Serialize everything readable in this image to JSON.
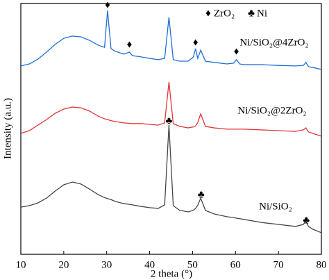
{
  "chart_data": {
    "type": "line",
    "xlabel": "2 theta (°)",
    "ylabel": "Intensity (a.u.)",
    "x": [
      10,
      12,
      14,
      16,
      18,
      20,
      22,
      24,
      26,
      28,
      29.5,
      30.2,
      31,
      32,
      34,
      35.3,
      36,
      38,
      40,
      42,
      43.5,
      44.5,
      45.5,
      47,
      49,
      50.2,
      50.7,
      51.2,
      51.9,
      53,
      55,
      58,
      59.6,
      60.2,
      61,
      62,
      66,
      70,
      74,
      75.8,
      76.4,
      77,
      78,
      80
    ],
    "series": [
      {
        "name": "Ni/SiO₂@4ZrO₂",
        "color": "#1f6fd6",
        "values": [
          75.1,
          75.9,
          77.8,
          80.6,
          83.7,
          86.1,
          87.0,
          86.7,
          85.3,
          83.4,
          82.5,
          97.2,
          82.0,
          80.9,
          79.8,
          80.6,
          79.2,
          78.7,
          78.1,
          77.6,
          78.1,
          94.5,
          77.6,
          77.0,
          77.0,
          78.7,
          82.0,
          78.1,
          81.4,
          77.0,
          76.5,
          75.9,
          76.2,
          77.6,
          75.9,
          75.6,
          75.6,
          75.3,
          75.1,
          75.3,
          76.5,
          74.8,
          74.5,
          73.7
        ]
      },
      {
        "name": "Ni/SiO₂@2ZrO₂",
        "color": "#e0363a",
        "values": [
          48.2,
          49.3,
          51.5,
          53.7,
          56.2,
          57.9,
          58.7,
          58.4,
          57.1,
          55.1,
          54.0,
          53.7,
          53.3,
          52.9,
          52.4,
          52.2,
          52.1,
          52.1,
          51.8,
          51.5,
          52.4,
          68.7,
          52.1,
          51.0,
          50.4,
          50.8,
          51.2,
          52.5,
          56.0,
          51.0,
          50.4,
          49.9,
          49.9,
          49.9,
          49.9,
          49.9,
          49.6,
          49.3,
          49.0,
          49.6,
          50.4,
          48.8,
          48.2,
          47.1
        ]
      },
      {
        "name": "Ni/SiO₂",
        "color": "#454545",
        "values": [
          18.8,
          19.4,
          20.5,
          22.4,
          25.2,
          27.7,
          28.8,
          28.0,
          26.0,
          23.8,
          22.6,
          22.2,
          21.8,
          21.1,
          20.2,
          19.9,
          19.7,
          19.1,
          18.6,
          18.3,
          19.7,
          51.5,
          19.4,
          17.5,
          16.9,
          17.6,
          18.3,
          19.5,
          22.4,
          17.5,
          16.1,
          15.0,
          14.6,
          14.4,
          14.2,
          13.9,
          12.7,
          11.9,
          11.1,
          11.9,
          13.3,
          11.1,
          10.0,
          8.6
        ]
      }
    ],
    "xlim": [
      10,
      80
    ],
    "xticks": [
      10,
      20,
      30,
      40,
      50,
      60,
      70,
      80
    ],
    "ylim": [
      0,
      100
    ],
    "legend": [
      {
        "symbol": "♦",
        "label": "ZrO₂"
      },
      {
        "symbol": "♣",
        "label": "Ni"
      }
    ],
    "annotations": [
      {
        "symbol": "♦",
        "x": 30.2,
        "y": 99.2
      },
      {
        "symbol": "♦",
        "x": 35.3,
        "y": 83.4
      },
      {
        "symbol": "♦",
        "x": 50.7,
        "y": 84.2
      },
      {
        "symbol": "♦",
        "x": 60.2,
        "y": 80.6
      },
      {
        "symbol": "♣",
        "x": 44.5,
        "y": 52.9
      },
      {
        "symbol": "♣",
        "x": 52,
        "y": 23.5
      },
      {
        "symbol": "♣",
        "x": 76.5,
        "y": 13.3
      }
    ]
  }
}
